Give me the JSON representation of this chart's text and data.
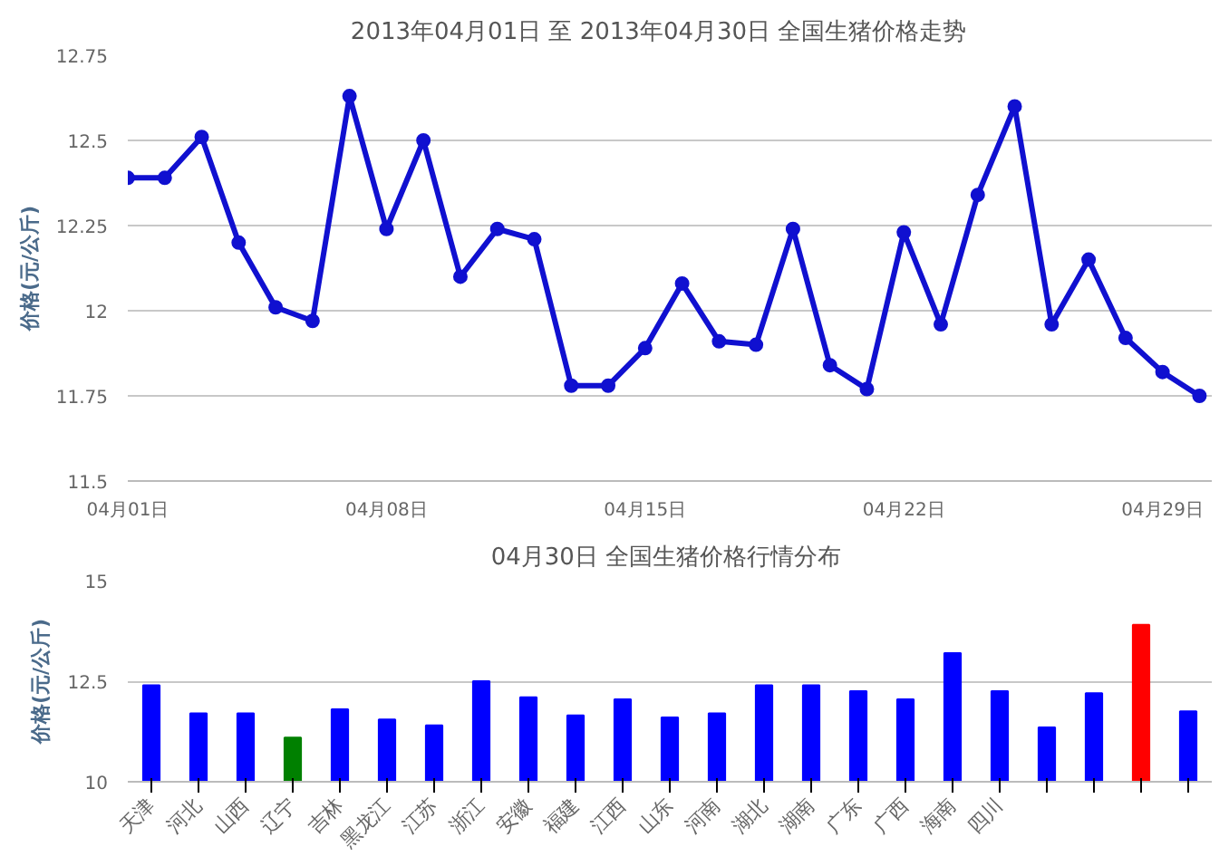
{
  "chart_data": [
    {
      "type": "line",
      "title": "2013年04月01日  至  2013年04月30日  全国生猪价格走势",
      "ylabel": "价格(元/公斤)",
      "x": [
        "2013-04-01",
        "2013-04-02",
        "2013-04-03",
        "2013-04-04",
        "2013-04-05",
        "2013-04-06",
        "2013-04-07",
        "2013-04-08",
        "2013-04-09",
        "2013-04-10",
        "2013-04-11",
        "2013-04-12",
        "2013-04-13",
        "2013-04-14",
        "2013-04-15",
        "2013-04-16",
        "2013-04-17",
        "2013-04-18",
        "2013-04-19",
        "2013-04-20",
        "2013-04-21",
        "2013-04-22",
        "2013-04-23",
        "2013-04-24",
        "2013-04-25",
        "2013-04-26",
        "2013-04-27",
        "2013-04-28",
        "2013-04-29",
        "2013-04-30"
      ],
      "series": [
        {
          "color": "#1010d0",
          "values": [
            12.39,
            12.39,
            12.51,
            12.2,
            12.01,
            11.97,
            12.63,
            12.24,
            12.5,
            12.1,
            12.24,
            12.21,
            11.78,
            11.78,
            11.89,
            12.08,
            11.91,
            11.9,
            12.24,
            11.84,
            11.77,
            12.23,
            11.96,
            12.34,
            12.6,
            11.96,
            12.15,
            11.92,
            11.82,
            11.75
          ]
        }
      ],
      "xlim": [
        "2013-04-01",
        "2013-04-30T08:00"
      ],
      "xticks": [
        {
          "value": "2013-04-01",
          "label": "04月01日"
        },
        {
          "value": "2013-04-08",
          "label": "04月08日"
        },
        {
          "value": "2013-04-15",
          "label": "04月15日"
        },
        {
          "value": "2013-04-22",
          "label": "04月22日"
        },
        {
          "value": "2013-04-29",
          "label": "04月29日"
        }
      ],
      "ylim": [
        11.5,
        12.75
      ],
      "yticks": [
        11.5,
        11.75,
        12,
        12.25,
        12.5,
        12.75
      ],
      "grid": "y",
      "marker": "circle",
      "line_style": "solid"
    },
    {
      "type": "bar",
      "title": "04月30日  全国生猪价格行情分布",
      "ylabel": "价格(元/公斤)",
      "categories": [
        "天津",
        "河北",
        "山西",
        "辽宁",
        "吉林",
        "黑龙江",
        "江苏",
        "浙江",
        "安徽",
        "福建",
        "江西",
        "山东",
        "河南",
        "湖北",
        "湖南",
        "广东",
        "广西",
        "海南",
        "四川",
        null,
        null,
        null,
        null
      ],
      "values": [
        12.4,
        11.7,
        11.7,
        11.1,
        11.8,
        11.55,
        11.4,
        12.5,
        12.1,
        11.65,
        12.05,
        11.6,
        11.7,
        12.4,
        12.4,
        12.25,
        12.05,
        13.2,
        12.25,
        11.35,
        12.2,
        13.9,
        11.75
      ],
      "colors": [
        "#0000ff",
        "#0000ff",
        "#0000ff",
        "#008000",
        "#0000ff",
        "#0000ff",
        "#0000ff",
        "#0000ff",
        "#0000ff",
        "#0000ff",
        "#0000ff",
        "#0000ff",
        "#0000ff",
        "#0000ff",
        "#0000ff",
        "#0000ff",
        "#0000ff",
        "#0000ff",
        "#0000ff",
        "#0000ff",
        "#0000ff",
        "#ff0000",
        "#0000ff"
      ],
      "ylim": [
        10,
        15
      ],
      "yticks": [
        10,
        12.5,
        15
      ],
      "grid": "y"
    }
  ]
}
